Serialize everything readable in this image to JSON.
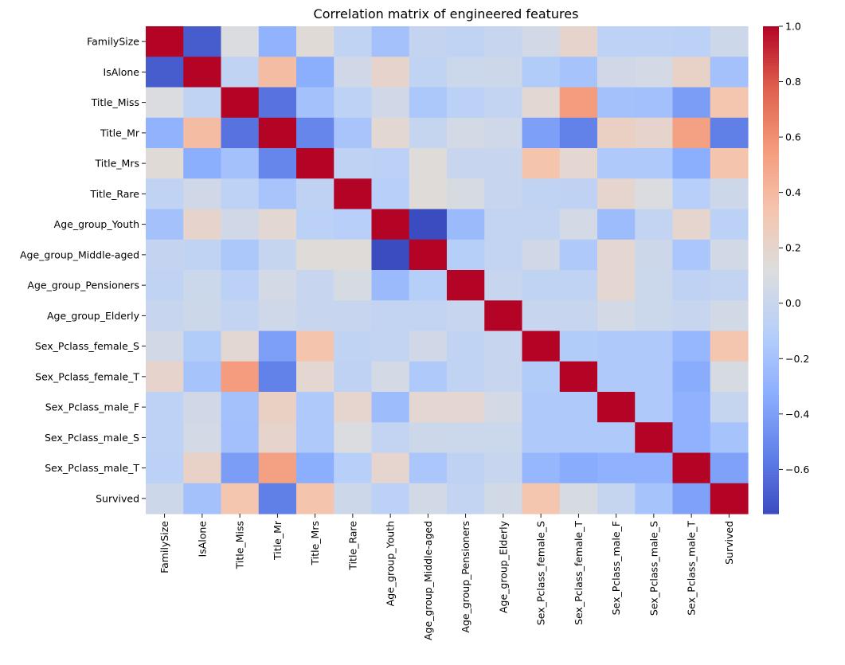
{
  "chart_data": {
    "type": "heatmap",
    "title": "Correlation matrix of engineered features",
    "xlabel": "",
    "ylabel": "",
    "labels": [
      "FamilySize",
      "IsAlone",
      "Title_Miss",
      "Title_Mr",
      "Title_Mrs",
      "Title_Rare",
      "Age_group_Youth",
      "Age_group_Middle-aged",
      "Age_group_Pensioners",
      "Age_group_Elderly",
      "Sex_Pclass_female_S",
      "Sex_Pclass_female_T",
      "Sex_Pclass_male_F",
      "Sex_Pclass_male_S",
      "Sex_Pclass_male_T",
      "Survived"
    ],
    "matrix": [
      [
        1.0,
        -0.69,
        0.1,
        -0.3,
        0.15,
        -0.05,
        -0.2,
        -0.03,
        -0.05,
        -0.01,
        0.05,
        0.2,
        -0.07,
        -0.07,
        -0.08,
        0.02
      ],
      [
        -0.69,
        1.0,
        -0.05,
        0.38,
        -0.33,
        0.04,
        0.2,
        -0.05,
        0.01,
        0.02,
        -0.13,
        -0.19,
        0.04,
        0.06,
        0.22,
        -0.2
      ],
      [
        0.1,
        -0.05,
        1.0,
        -0.6,
        -0.2,
        -0.07,
        0.04,
        -0.16,
        -0.08,
        -0.04,
        0.17,
        0.55,
        -0.2,
        -0.21,
        -0.41,
        0.33
      ],
      [
        -0.3,
        0.38,
        -0.6,
        1.0,
        -0.52,
        -0.18,
        0.17,
        -0.02,
        0.06,
        0.03,
        -0.4,
        -0.54,
        0.24,
        0.2,
        0.53,
        -0.55
      ],
      [
        0.15,
        -0.33,
        -0.2,
        -0.52,
        1.0,
        -0.06,
        -0.08,
        0.14,
        -0.01,
        -0.01,
        0.34,
        0.18,
        -0.15,
        -0.15,
        -0.33,
        0.34
      ],
      [
        -0.05,
        0.04,
        -0.07,
        -0.18,
        -0.06,
        1.0,
        -0.1,
        0.14,
        0.08,
        -0.01,
        -0.05,
        -0.06,
        0.19,
        0.1,
        -0.1,
        0.02
      ],
      [
        -0.2,
        0.2,
        0.04,
        0.17,
        -0.08,
        -0.1,
        1.0,
        -0.76,
        -0.25,
        -0.04,
        -0.04,
        0.06,
        -0.24,
        -0.04,
        0.19,
        -0.08
      ],
      [
        -0.03,
        -0.05,
        -0.16,
        -0.02,
        0.14,
        0.14,
        -0.76,
        1.0,
        -0.11,
        -0.04,
        0.04,
        -0.15,
        0.18,
        0.02,
        -0.17,
        0.05
      ],
      [
        -0.05,
        0.01,
        -0.08,
        0.06,
        -0.01,
        0.08,
        -0.25,
        -0.11,
        1.0,
        -0.01,
        -0.05,
        -0.05,
        0.18,
        0.01,
        -0.06,
        -0.04
      ],
      [
        -0.01,
        0.02,
        -0.04,
        0.03,
        -0.01,
        -0.01,
        -0.04,
        -0.04,
        -0.01,
        1.0,
        -0.01,
        -0.01,
        0.06,
        0.01,
        -0.01,
        0.05
      ],
      [
        0.05,
        -0.13,
        0.17,
        -0.4,
        0.34,
        -0.05,
        -0.04,
        0.04,
        -0.05,
        -0.01,
        1.0,
        -0.13,
        -0.15,
        -0.15,
        -0.27,
        0.33
      ],
      [
        0.2,
        -0.19,
        0.55,
        -0.54,
        0.18,
        -0.06,
        0.06,
        -0.15,
        -0.05,
        -0.01,
        -0.13,
        1.0,
        -0.15,
        -0.15,
        -0.34,
        0.08
      ],
      [
        -0.07,
        0.04,
        -0.2,
        0.24,
        -0.15,
        0.19,
        -0.24,
        0.18,
        0.18,
        0.06,
        -0.15,
        -0.15,
        1.0,
        -0.15,
        -0.31,
        -0.02
      ],
      [
        -0.07,
        0.06,
        -0.21,
        0.2,
        -0.15,
        0.1,
        -0.04,
        0.02,
        0.01,
        0.01,
        -0.15,
        -0.15,
        -0.15,
        1.0,
        -0.31,
        -0.19
      ],
      [
        -0.08,
        0.22,
        -0.41,
        0.53,
        -0.33,
        -0.1,
        0.19,
        -0.17,
        -0.06,
        -0.01,
        -0.27,
        -0.34,
        -0.31,
        -0.31,
        1.0,
        -0.39
      ],
      [
        0.02,
        -0.2,
        0.33,
        -0.55,
        0.34,
        0.02,
        -0.08,
        0.05,
        -0.04,
        0.05,
        0.33,
        0.08,
        -0.02,
        -0.19,
        -0.39,
        1.0
      ]
    ],
    "vmin": -0.76,
    "vmax": 1.0,
    "colormap": "coolwarm",
    "colorbar_ticks": [
      "1.0",
      "0.8",
      "0.6",
      "0.4",
      "0.2",
      "0.0",
      "−0.2",
      "−0.4",
      "−0.6"
    ],
    "colorbar_tick_values": [
      1.0,
      0.8,
      0.6,
      0.4,
      0.2,
      0.0,
      -0.2,
      -0.4,
      -0.6
    ],
    "grid": false,
    "legend": "colorbar-right"
  }
}
